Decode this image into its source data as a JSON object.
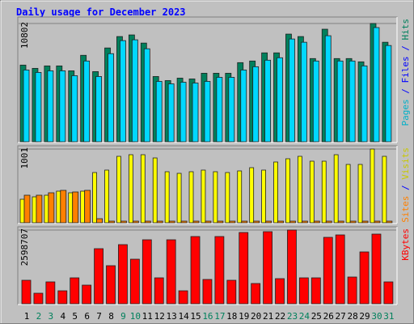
{
  "title": "Daily usage for December 2023",
  "chart_data": [
    {
      "type": "bar",
      "ylim": [
        0,
        10802
      ],
      "yticks": [
        10802
      ],
      "legend_separator": " / ",
      "extra_legend": {
        "name": "Pages",
        "color": "#00b0c8"
      },
      "series": [
        {
          "name": "Hits",
          "color": "#00805c",
          "label_color": "#00805c",
          "values": [
            7003,
            6705,
            6928,
            6928,
            6481,
            7897,
            6407,
            8567,
            9610,
            9759,
            9014,
            5960,
            5587,
            5811,
            5736,
            6258,
            6258,
            6258,
            7226,
            7375,
            8120,
            8120,
            9834,
            9610,
            7599,
            10281,
            7599,
            7599,
            7301,
            10802,
            9089
          ]
        },
        {
          "name": "Files",
          "color": "#00d8ff",
          "label_color": "#0000ff",
          "values": [
            6556,
            6333,
            6482,
            6482,
            6035,
            7376,
            5960,
            8046,
            9238,
            9313,
            8493,
            5513,
            5290,
            5439,
            5364,
            5513,
            5886,
            5886,
            6556,
            6854,
            7450,
            7674,
            9387,
            9089,
            7376,
            9685,
            7376,
            7376,
            6929,
            10430,
            8791
          ]
        }
      ]
    },
    {
      "type": "bar",
      "ylim": [
        0,
        1001
      ],
      "yticks": [
        1001
      ],
      "legend_separator": " / ",
      "series": [
        {
          "name": "Visits",
          "color": "#ffff00",
          "label_color": "#c8c800",
          "values": [
            319,
            352,
            374,
            429,
            407,
            429,
            682,
            715,
            902,
            924,
            924,
            880,
            693,
            671,
            693,
            715,
            693,
            682,
            704,
            748,
            715,
            825,
            869,
            902,
            836,
            836,
            924,
            792,
            792,
            1001,
            902
          ]
        },
        {
          "name": "Sites",
          "color": "#ff8000",
          "label_color": "#ff8000",
          "values": [
            374,
            374,
            407,
            440,
            418,
            440,
            55,
            22,
            22,
            22,
            22,
            22,
            22,
            22,
            22,
            22,
            22,
            22,
            22,
            22,
            22,
            22,
            22,
            22,
            22,
            22,
            22,
            22,
            22,
            22,
            22
          ]
        }
      ]
    },
    {
      "type": "bar",
      "ylim": [
        0,
        2598707
      ],
      "yticks": [
        2598707
      ],
      "categories": [
        "1",
        "2",
        "3",
        "4",
        "5",
        "6",
        "7",
        "8",
        "9",
        "10",
        "11",
        "12",
        "13",
        "14",
        "15",
        "16",
        "17",
        "18",
        "19",
        "20",
        "21",
        "22",
        "23",
        "24",
        "25",
        "26",
        "27",
        "28",
        "29",
        "30",
        "31"
      ],
      "category_colors": [
        "#000000",
        "#00805c",
        "#00805c",
        "#000000",
        "#000000",
        "#000000",
        "#000000",
        "#000000",
        "#00805c",
        "#00805c",
        "#000000",
        "#000000",
        "#000000",
        "#000000",
        "#000000",
        "#00805c",
        "#00805c",
        "#000000",
        "#000000",
        "#000000",
        "#000000",
        "#000000",
        "#00805c",
        "#00805c",
        "#000000",
        "#000000",
        "#000000",
        "#000000",
        "#000000",
        "#00805c",
        "#00805c"
      ],
      "series": [
        {
          "name": "KBytes",
          "color": "#ff0000",
          "label_color": "#ff0000",
          "values": [
            828153,
            371241,
            771039,
            456912,
            913824,
            656811,
            1941876,
            1342179,
            2084661,
            1570635,
            2256003,
            913824,
            2256003,
            456912,
            2370231,
            856710,
            2370231,
            828153,
            2513016,
            713925,
            2541573,
            885267,
            2598707,
            913824,
            913824,
            2341674,
            2427345,
            942381,
            1827648,
            2455902,
            771039
          ]
        }
      ]
    }
  ]
}
